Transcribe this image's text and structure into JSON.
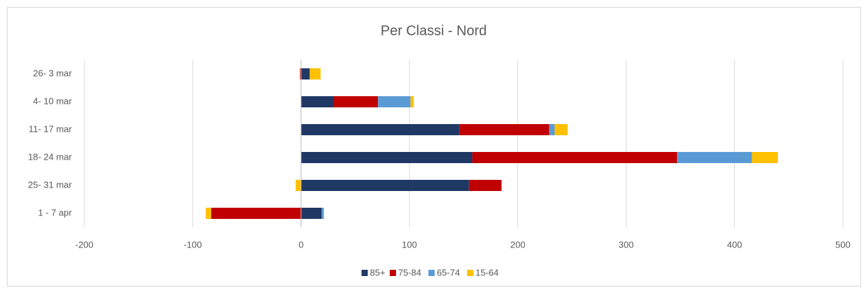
{
  "chart_data": {
    "type": "stacked-barh",
    "title": "Per Classi - Nord",
    "categories": [
      "26- 3 mar",
      "4- 10 mar",
      "11- 17 mar",
      "18- 24 mar",
      "25- 31 mar",
      "1 - 7 apr"
    ],
    "series": [
      {
        "name": "85+",
        "color": "#203864",
        "values": [
          8,
          30,
          146,
          158,
          155,
          19
        ]
      },
      {
        "name": "75-84",
        "color": "#c00000",
        "values": [
          -1,
          41,
          83,
          189,
          30,
          -83
        ]
      },
      {
        "name": "65-74",
        "color": "#5b9bd5",
        "values": [
          0,
          30,
          5,
          69,
          0,
          2
        ]
      },
      {
        "name": "15-64",
        "color": "#ffc000",
        "values": [
          10,
          3,
          12,
          24,
          -5,
          -5
        ]
      }
    ],
    "xlim": [
      -200,
      500
    ],
    "xticks": [
      -200,
      -100,
      0,
      100,
      200,
      300,
      400,
      500
    ],
    "grid": true,
    "legend": "bottom"
  }
}
